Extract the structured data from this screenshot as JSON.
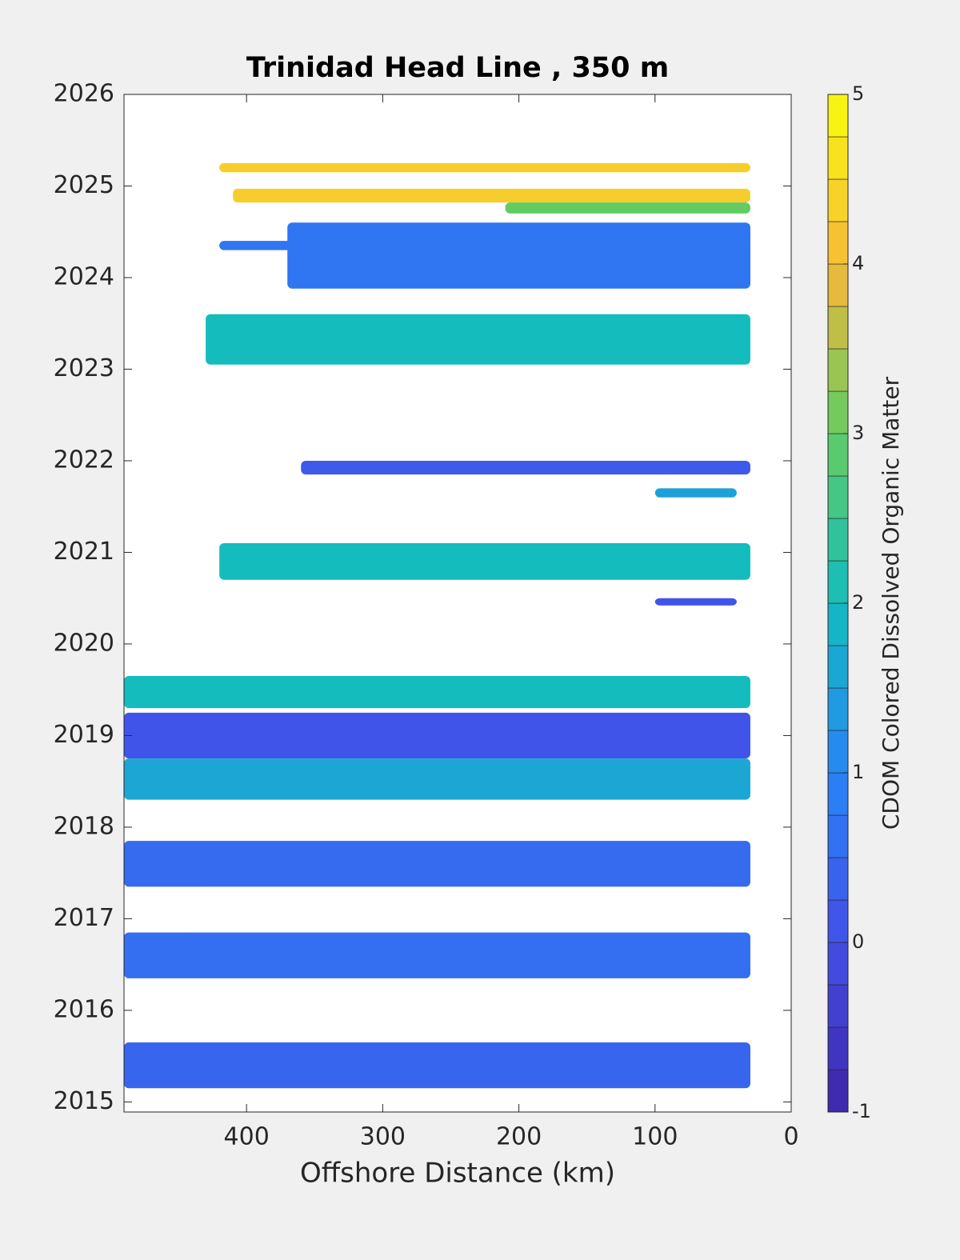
{
  "chart_data": {
    "type": "contour",
    "title": "Trinidad Head Line , 350 m",
    "xlabel": "Offshore Distance (km)",
    "colorbar_label": "CDOM Colored Dissolved Organic Matter",
    "colormap": "parula",
    "xlim": [
      490,
      0
    ],
    "xticks": [
      400,
      300,
      200,
      100,
      0
    ],
    "ylim": [
      2014.89,
      2026
    ],
    "yticks": [
      2015,
      2016,
      2017,
      2018,
      2019,
      2020,
      2021,
      2022,
      2023,
      2024,
      2025,
      2026
    ],
    "clim": [
      -1,
      5
    ],
    "cticks": [
      -1,
      0,
      1,
      2,
      3,
      4,
      5
    ],
    "regions": [
      {
        "distance": [
          420,
          30
        ],
        "year": [
          2025.15,
          2025.25
        ],
        "value": 4.3
      },
      {
        "distance": [
          410,
          30
        ],
        "year": [
          2024.82,
          2024.97
        ],
        "value": 4.3
      },
      {
        "distance": [
          210,
          30
        ],
        "year": [
          2024.7,
          2024.82
        ],
        "value": 3.0
      },
      {
        "distance": [
          420,
          30
        ],
        "year": [
          2024.3,
          2024.4
        ],
        "value": 0.7
      },
      {
        "distance": [
          370,
          30
        ],
        "year": [
          2023.88,
          2024.6
        ],
        "value": 0.7
      },
      {
        "distance": [
          430,
          30
        ],
        "year": [
          2023.05,
          2023.6
        ],
        "value": 2.0
      },
      {
        "distance": [
          360,
          30
        ],
        "year": [
          2021.85,
          2022.0
        ],
        "value": 0.2
      },
      {
        "distance": [
          100,
          40
        ],
        "year": [
          2021.6,
          2021.7
        ],
        "value": 1.5
      },
      {
        "distance": [
          420,
          30
        ],
        "year": [
          2020.7,
          2021.1
        ],
        "value": 2.0
      },
      {
        "distance": [
          100,
          40
        ],
        "year": [
          2020.42,
          2020.5
        ],
        "value": 0.1
      },
      {
        "distance": [
          490,
          30
        ],
        "year": [
          2019.3,
          2019.65
        ],
        "value": 2.0
      },
      {
        "distance": [
          490,
          30
        ],
        "year": [
          2018.75,
          2019.25
        ],
        "value": 0.1
      },
      {
        "distance": [
          490,
          30
        ],
        "year": [
          2018.3,
          2018.75
        ],
        "value": 1.6
      },
      {
        "distance": [
          490,
          30
        ],
        "year": [
          2017.35,
          2017.85
        ],
        "value": 0.5
      },
      {
        "distance": [
          490,
          30
        ],
        "year": [
          2016.35,
          2016.85
        ],
        "value": 0.6
      },
      {
        "distance": [
          490,
          30
        ],
        "year": [
          2015.15,
          2015.65
        ],
        "value": 0.4
      }
    ]
  }
}
